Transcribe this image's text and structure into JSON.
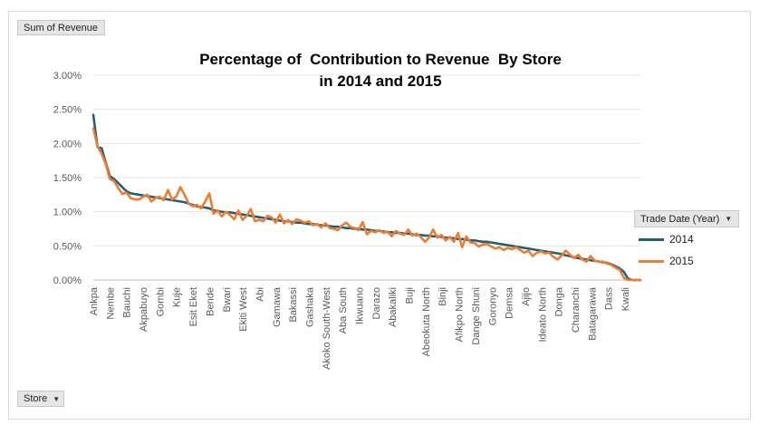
{
  "field_buttons": {
    "value_field": "Sum of Revenue",
    "row_field": "Store",
    "legend_field": "Trade Date (Year)"
  },
  "colors": {
    "s2014": "#1f5f7a",
    "s2015": "#ed7d31",
    "grid": "#e3e3e3"
  },
  "chart_data": {
    "type": "line",
    "title_line1": "Percentage of  Contribution to Revenue  By Store",
    "title_line2": "in 2014 and 2015",
    "y_ticks": [
      "0.00%",
      "0.50%",
      "1.00%",
      "1.50%",
      "2.00%",
      "2.50%",
      "3.00%"
    ],
    "ylim": [
      0,
      3.0
    ],
    "x_tick_labels": [
      "Ankpa",
      "Nembe",
      "Bauchi",
      "Akpabuyo",
      "Gombi",
      "Kuje",
      "Esit Eket",
      "Bende",
      "Bwari",
      "Ekiti West",
      "Abi",
      "Gamawa",
      "Bakassi",
      "Gashaka",
      "Akoko South-West",
      "Aba South",
      "Ikwuano",
      "Darazo",
      "Abakaliki",
      "Buji",
      "Abeokuta North",
      "Binji",
      "Afikpo North",
      "Dange Shuni",
      "Goronyo",
      "Demsa",
      "Ajijo",
      "Ideato North",
      "Donga",
      "Charanchi",
      "Batagarawa",
      "Dass",
      "Kwali"
    ],
    "grid": true,
    "legend_position": "right",
    "series": [
      {
        "name": "2014",
        "values": [
          2.42,
          1.95,
          1.93,
          1.72,
          1.52,
          1.48,
          1.42,
          1.36,
          1.3,
          1.27,
          1.26,
          1.25,
          1.24,
          1.23,
          1.22,
          1.21,
          1.2,
          1.19,
          1.18,
          1.17,
          1.16,
          1.15,
          1.14,
          1.12,
          1.1,
          1.08,
          1.07,
          1.06,
          1.05,
          1.02,
          1.01,
          1.0,
          0.99,
          0.99,
          0.98,
          0.97,
          0.96,
          0.95,
          0.94,
          0.93,
          0.92,
          0.91,
          0.9,
          0.89,
          0.88,
          0.87,
          0.86,
          0.86,
          0.85,
          0.84,
          0.84,
          0.83,
          0.82,
          0.82,
          0.81,
          0.8,
          0.8,
          0.79,
          0.78,
          0.78,
          0.77,
          0.76,
          0.76,
          0.75,
          0.75,
          0.74,
          0.74,
          0.73,
          0.72,
          0.72,
          0.71,
          0.7,
          0.7,
          0.69,
          0.69,
          0.68,
          0.68,
          0.67,
          0.66,
          0.66,
          0.65,
          0.65,
          0.64,
          0.64,
          0.63,
          0.62,
          0.62,
          0.61,
          0.6,
          0.6,
          0.59,
          0.58,
          0.58,
          0.57,
          0.56,
          0.56,
          0.55,
          0.54,
          0.53,
          0.52,
          0.51,
          0.5,
          0.49,
          0.48,
          0.47,
          0.46,
          0.45,
          0.44,
          0.43,
          0.42,
          0.41,
          0.4,
          0.39,
          0.38,
          0.36,
          0.35,
          0.33,
          0.32,
          0.31,
          0.3,
          0.29,
          0.28,
          0.27,
          0.26,
          0.25,
          0.23,
          0.2,
          0.17,
          0.12,
          0.02,
          0.0,
          0.0,
          0.0
        ]
      },
      {
        "name": "2015",
        "values": [
          2.22,
          1.96,
          1.85,
          1.7,
          1.48,
          1.45,
          1.35,
          1.26,
          1.28,
          1.2,
          1.18,
          1.18,
          1.22,
          1.25,
          1.15,
          1.2,
          1.22,
          1.17,
          1.32,
          1.18,
          1.22,
          1.36,
          1.25,
          1.12,
          1.08,
          1.1,
          1.05,
          1.15,
          1.27,
          0.97,
          1.02,
          0.93,
          1.0,
          0.95,
          0.89,
          1.02,
          0.88,
          0.94,
          1.04,
          0.86,
          0.88,
          0.86,
          0.94,
          0.92,
          0.84,
          0.96,
          0.83,
          0.88,
          0.82,
          0.89,
          0.87,
          0.84,
          0.86,
          0.8,
          0.82,
          0.77,
          0.83,
          0.76,
          0.75,
          0.73,
          0.8,
          0.84,
          0.78,
          0.76,
          0.73,
          0.85,
          0.67,
          0.72,
          0.7,
          0.73,
          0.69,
          0.71,
          0.64,
          0.72,
          0.68,
          0.66,
          0.74,
          0.65,
          0.68,
          0.63,
          0.56,
          0.62,
          0.74,
          0.62,
          0.66,
          0.58,
          0.63,
          0.56,
          0.69,
          0.48,
          0.64,
          0.55,
          0.54,
          0.49,
          0.52,
          0.53,
          0.49,
          0.46,
          0.48,
          0.44,
          0.47,
          0.45,
          0.48,
          0.44,
          0.4,
          0.43,
          0.35,
          0.4,
          0.42,
          0.39,
          0.4,
          0.34,
          0.3,
          0.36,
          0.43,
          0.37,
          0.32,
          0.37,
          0.3,
          0.27,
          0.35,
          0.28,
          0.27,
          0.27,
          0.24,
          0.22,
          0.18,
          0.15,
          0.03,
          0.0,
          0.0,
          0.0,
          0.0
        ]
      }
    ]
  }
}
